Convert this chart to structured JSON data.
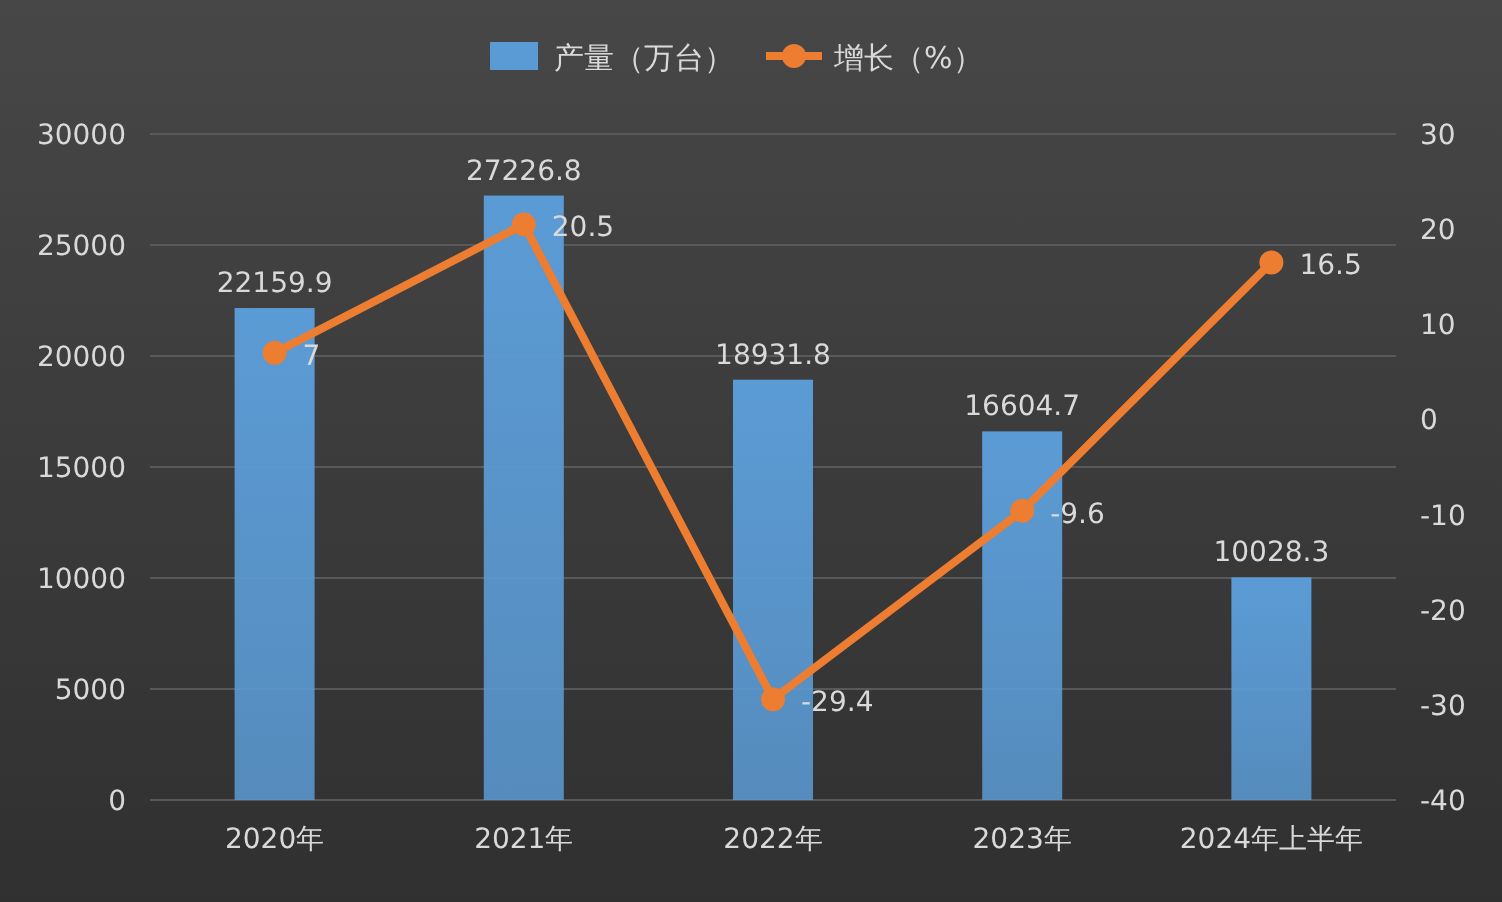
{
  "chart_data": {
    "type": "bar",
    "categories": [
      "2020年",
      "2021年",
      "2022年",
      "2023年",
      "2024年上半年"
    ],
    "series": [
      {
        "name": "产量（万台）",
        "color": "#5b9bd5",
        "values": [
          22159.9,
          27226.8,
          18931.8,
          16604.7,
          10028.3
        ]
      },
      {
        "name": "增长（%）",
        "type": "line",
        "axis": "y2",
        "marker": "circle",
        "color": "#ed7d31",
        "values": [
          7,
          20.5,
          -29.4,
          -9.6,
          16.5
        ]
      }
    ],
    "ylim": [
      0,
      30000
    ],
    "yticks": [
      0,
      5000,
      10000,
      15000,
      20000,
      25000,
      30000
    ],
    "y2lim": [
      -40,
      30
    ],
    "y2ticks": [
      -40,
      -30,
      -20,
      -10,
      0,
      10,
      20,
      30
    ],
    "grid": "y",
    "legend": "top",
    "data_labels": true
  }
}
